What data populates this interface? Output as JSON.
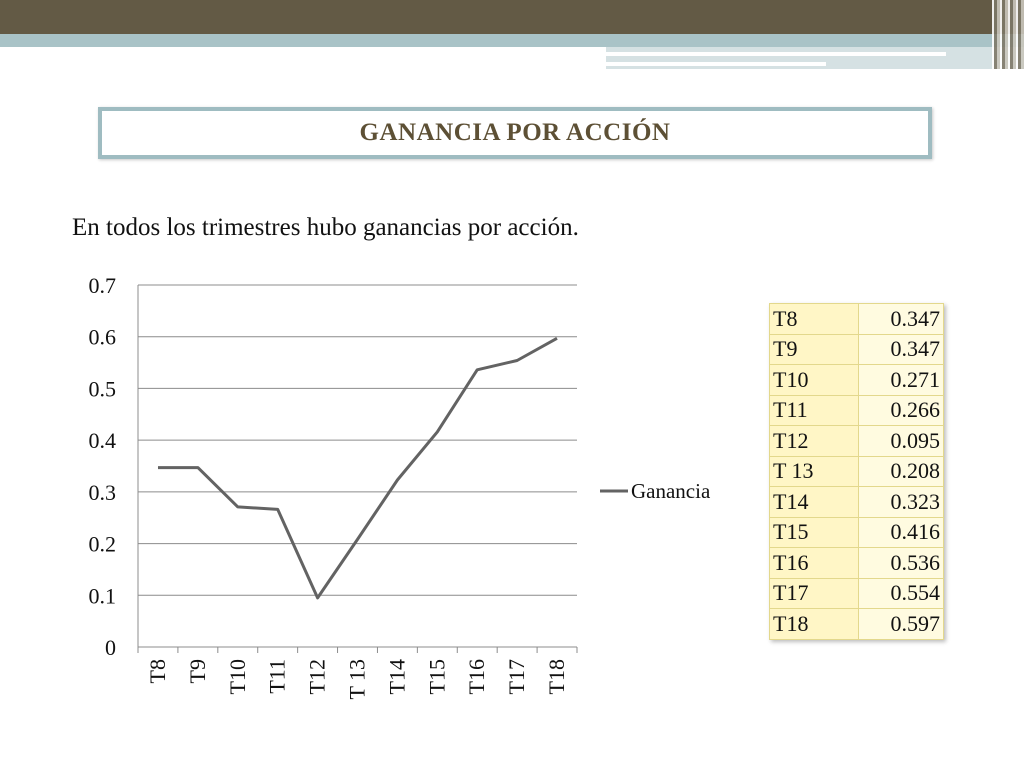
{
  "title": "GANANCIA POR ACCIÓN",
  "subtitle": "En todos los trimestres hubo ganancias por acción.",
  "chart_data": {
    "type": "line",
    "categories": [
      "T8",
      "T9",
      "T10",
      "T11",
      "T12",
      "T 13",
      "T14",
      "T15",
      "T16",
      "T17",
      "T18"
    ],
    "series": [
      {
        "name": "Ganancia",
        "values": [
          0.347,
          0.347,
          0.271,
          0.266,
          0.095,
          0.208,
          0.323,
          0.416,
          0.536,
          0.554,
          0.597
        ]
      }
    ],
    "yticks": [
      "0",
      "0.1",
      "0.2",
      "0.3",
      "0.4",
      "0.5",
      "0.6",
      "0.7"
    ],
    "ylim": [
      0,
      0.7
    ],
    "grid": true,
    "legend_position": "right",
    "line_color": "#636363"
  },
  "table": {
    "rows": [
      {
        "label": "T8",
        "value": "0.347"
      },
      {
        "label": "T9",
        "value": "0.347"
      },
      {
        "label": "T10",
        "value": "0.271"
      },
      {
        "label": "T11",
        "value": "0.266"
      },
      {
        "label": "T12",
        "value": "0.095"
      },
      {
        "label": "T 13",
        "value": "0.208"
      },
      {
        "label": "T14",
        "value": "0.323"
      },
      {
        "label": "T15",
        "value": "0.416"
      },
      {
        "label": "T16",
        "value": "0.536"
      },
      {
        "label": "T17",
        "value": "0.554"
      },
      {
        "label": "T18",
        "value": "0.597"
      }
    ]
  }
}
